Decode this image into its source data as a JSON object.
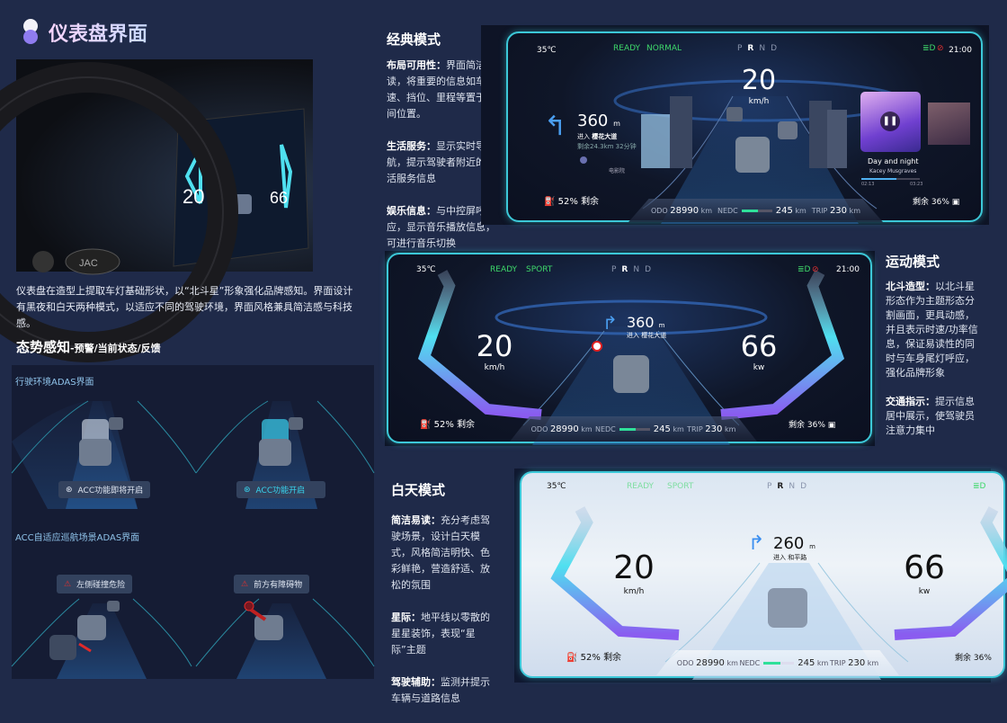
{
  "header": {
    "title": "仪表盘界面"
  },
  "intro": "仪表盘在造型上提取车灯基础形状，以“北斗星”形象强化品牌感知。界面设计有黑夜和白天两种模式，以适应不同的驾驶环境，界面风格兼具简洁感与科技感。",
  "awareness": {
    "title": "态势感知",
    "subtitle": "-预警/当前状态/反馈",
    "section1": "行驶环境ADAS界面",
    "badge1": "ACC功能即将开启",
    "badge2": "ACC功能开启",
    "section2": "ACC自适应巡航场景ADAS界面",
    "warn1": "左侧碰撞危险",
    "warn2": "前方有障碍物"
  },
  "modes": {
    "classic": {
      "title": "经典模式",
      "points": [
        {
          "label": "布局可用性：",
          "text": "界面简洁易读，将重要的信息如车速、挡位、里程等置于中间位置。"
        },
        {
          "label": "生活服务：",
          "text": "显示实时导航，提示驾驶者附近的生活服务信息"
        },
        {
          "label": "娱乐信息：",
          "text": "与中控屏呼应，显示音乐播放信息，可进行音乐切换"
        }
      ]
    },
    "sport": {
      "title": "运动模式",
      "points": [
        {
          "label": "北斗造型：",
          "text": "以北斗星形态作为主题形态分割画面，更具动感，并且表示时速/功率信息，保证易读性的同时与车身尾灯呼应，强化品牌形象"
        },
        {
          "label": "交通指示：",
          "text": "提示信息居中展示，使驾驶员注意力集中"
        }
      ]
    },
    "day": {
      "title": "白天模式",
      "points": [
        {
          "label": "简洁易读：",
          "text": "充分考虑驾驶场景，设计白天模式，风格简洁明快、色彩鲜艳，营造舒适、放松的氛围"
        },
        {
          "label": "星际：",
          "text": "地平线以零散的星星装饰，表现“星际”主题"
        },
        {
          "label": "驾驶辅助：",
          "text": "监测并提示车辆与道路信息"
        }
      ]
    }
  },
  "dash": {
    "gears": [
      "P",
      "R",
      "N",
      "D"
    ],
    "active_gear": "R",
    "classic": {
      "temp": "35℃",
      "ready": "READY",
      "mode": "NORMAL",
      "time": "21:00",
      "speed": "20",
      "speed_unit": "km/h",
      "nav_distance": "360",
      "nav_unit": "m",
      "nav_enter": "进入",
      "nav_road": "樱花大道",
      "nav_remaining": "剩余24.3km  32分钟",
      "poi": "电影院",
      "battery": "52%",
      "battery_label": "剩余",
      "fuel_label": "剩余",
      "fuel": "36%",
      "odo_label": "ODO",
      "odo": "28990",
      "nedc_label": "NEDC",
      "nedc": "245",
      "nedc_level": 0.55,
      "trip_label": "TRIP",
      "trip": "230",
      "km": "km",
      "song": "Day and night",
      "artist": "Kacey Musgraves",
      "time_start": "02:13",
      "time_end": "03:23",
      "music_progress": 0.6
    },
    "sport": {
      "temp": "35℃",
      "ready": "READY",
      "mode": "SPORT",
      "time": "21:00",
      "speed": "20",
      "speed_unit": "km/h",
      "power": "66",
      "power_unit": "kw",
      "nav_distance": "360",
      "nav_unit": "m",
      "nav_enter": "进入",
      "nav_road": "樱花大道",
      "battery": "52%",
      "battery_label": "剩余",
      "fuel_label": "剩余",
      "fuel": "36%",
      "odo_label": "ODO",
      "odo": "28990",
      "nedc_label": "NEDC",
      "nedc": "245",
      "nedc_level": 0.55,
      "trip_label": "TRIP",
      "trip": "230",
      "km": "km"
    },
    "day": {
      "temp": "35℃",
      "ready": "READY",
      "mode": "SPORT",
      "speed": "20",
      "speed_unit": "km/h",
      "power": "66",
      "power_unit": "kw",
      "nav_distance": "260",
      "nav_unit": "m",
      "nav_enter": "进入",
      "nav_road": "和平路",
      "battery": "52%",
      "battery_label": "剩余",
      "fuel_label": "剩余",
      "fuel": "36%",
      "odo_label": "ODO",
      "odo": "28990",
      "nedc_label": "NEDC",
      "nedc": "245",
      "nedc_level": 0.55,
      "trip_label": "TRIP",
      "trip": "230",
      "km": "km"
    }
  },
  "colors": {
    "background": "#1f2a49",
    "accent": "#3cc8d8",
    "ready": "#3ed86a",
    "chevron_start": "#4fe0f0",
    "chevron_end": "#8a5cf0"
  }
}
